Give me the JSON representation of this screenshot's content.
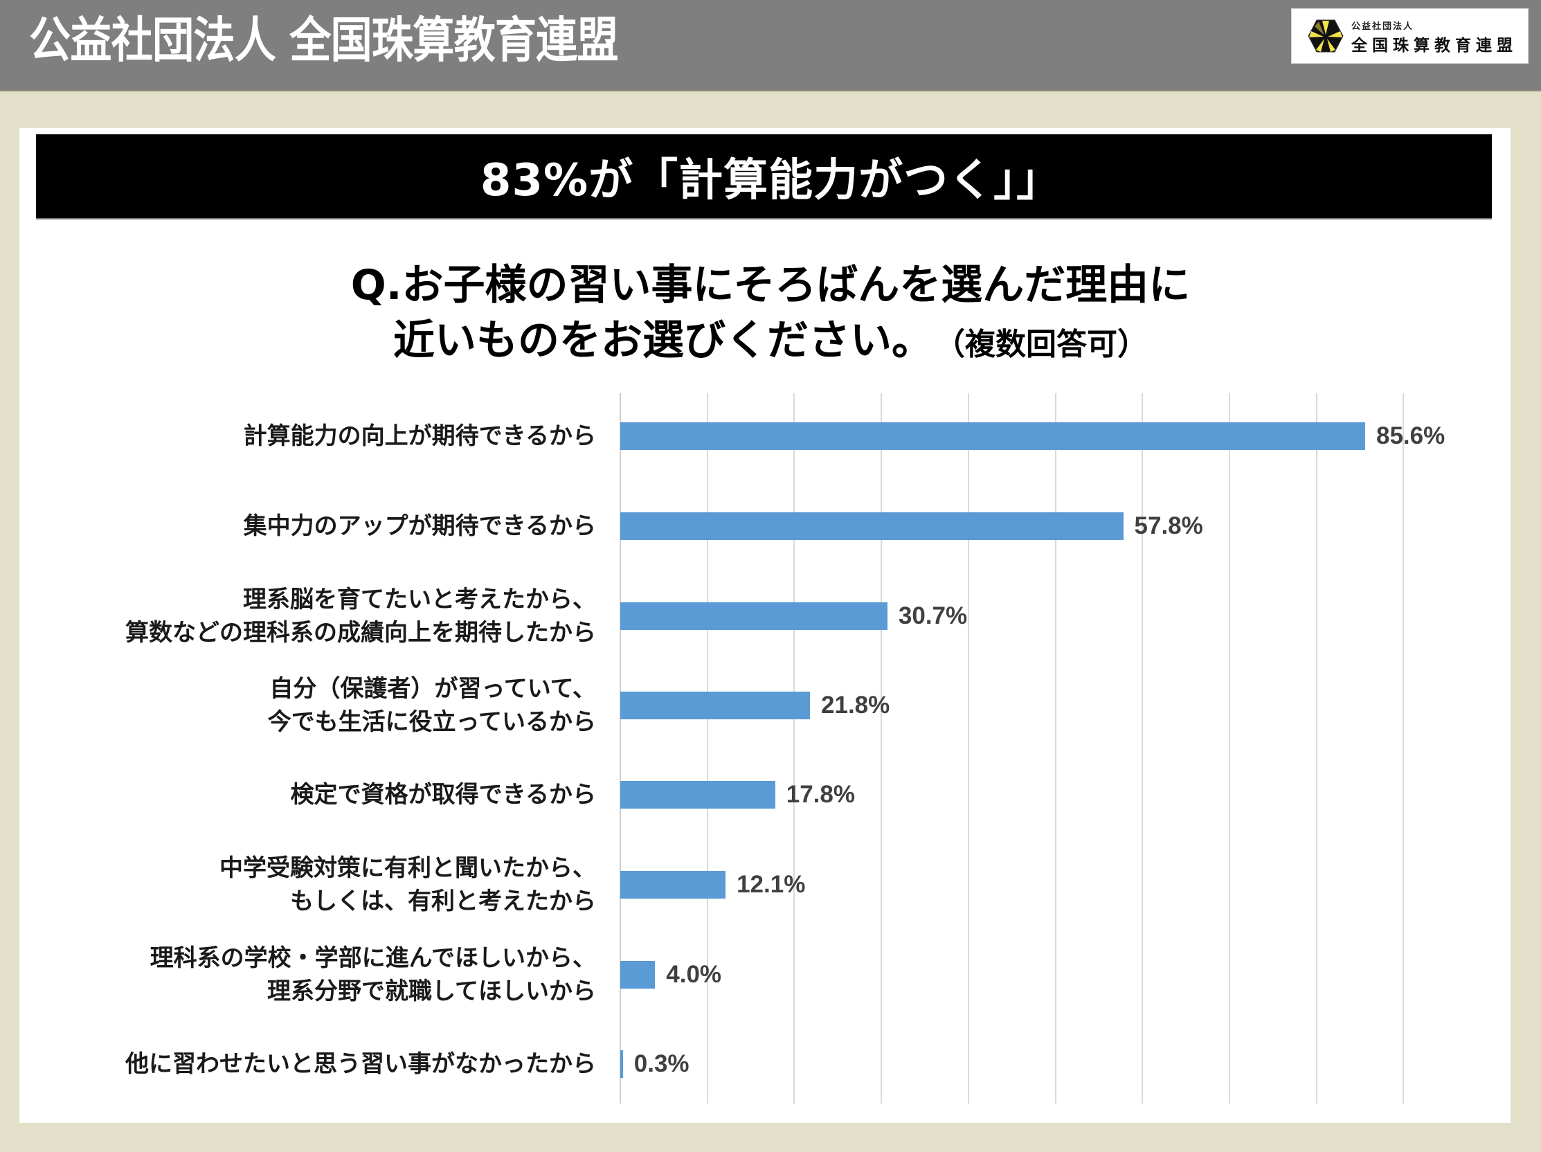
{
  "header": {
    "title": "公益社団法人 全国珠算教育連盟",
    "logo": {
      "icon": "hexagon-emblem-icon",
      "small_text": "公益社団法人",
      "main_text": "全国珠算教育連盟"
    }
  },
  "banner": {
    "text": "83%が「計算能力がつく」」"
  },
  "question": {
    "line1": "Q.お子様の習い事にそろばんを選んだ理由に",
    "line2": "近いものをお選びください。",
    "note": "（複数回答可）"
  },
  "colors": {
    "header_bg": "#7f7f7f",
    "page_bg": "#e2e0c9",
    "banner_bg": "#000000",
    "bar": "#5b9bd5",
    "value_text": "#404040",
    "gridline": "#d9d9d9"
  },
  "chart_data": {
    "type": "bar",
    "orientation": "horizontal",
    "title": "Q.お子様の習い事にそろばんを選んだ理由に近いものをお選びください。（複数回答可）",
    "xlabel": "",
    "ylabel": "",
    "xlim": [
      0,
      90
    ],
    "grid": true,
    "gridlines_x": [
      0,
      10,
      20,
      30,
      40,
      50,
      60,
      70,
      80,
      90
    ],
    "tick_labels_visible": false,
    "unit": "%",
    "categories": [
      "計算能力の向上が期待できるから",
      "集中力のアップが期待できるから",
      "理系脳を育てたいと考えたから、算数などの理科系の成績向上を期待したから",
      "自分（保護者）が習っていて、今でも生活に役立っているから",
      "検定で資格が取得できるから",
      "中学受験対策に有利と聞いたから、もしくは、有利と考えたから",
      "理科系の学校・学部に進んでほしいから、理系分野で就職してほしいから",
      "他に習わせたいと思う習い事がなかったから"
    ],
    "values": [
      85.6,
      57.8,
      30.7,
      21.8,
      17.8,
      12.1,
      4.0,
      0.3
    ],
    "value_labels": [
      "85.6%",
      "57.8%",
      "30.7%",
      "21.8%",
      "17.8%",
      "12.1%",
      "4.0%",
      "0.3%"
    ],
    "label_lines": [
      [
        "計算能力の向上が期待できるから"
      ],
      [
        "集中力のアップが期待できるから"
      ],
      [
        "理系脳を育てたいと考えたから、",
        "算数などの理科系の成績向上を期待したから"
      ],
      [
        "自分（保護者）が習っていて、",
        "今でも生活に役立っているから"
      ],
      [
        "検定で資格が取得できるから"
      ],
      [
        "中学受験対策に有利と聞いたから、",
        "もしくは、有利と考えたから"
      ],
      [
        "理科系の学校・学部に進んでほしいから、",
        "理系分野で就職してほしいから"
      ],
      [
        "他に習わせたいと思う習い事がなかったから"
      ]
    ],
    "legend": null
  }
}
